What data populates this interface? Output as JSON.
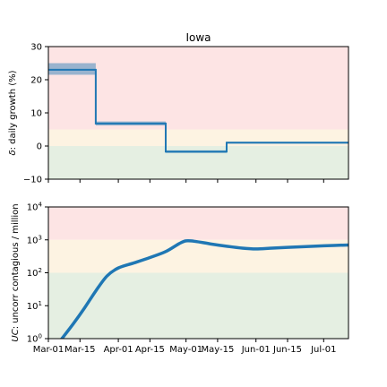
{
  "chart_data": [
    {
      "type": "line",
      "title": "Iowa",
      "ylabel": "δ: daily growth (%)",
      "ylabel_var": "δ",
      "ylabel_rest": ": daily growth (%)",
      "xlim": [
        "2020-03-01",
        "2020-07-12"
      ],
      "ylim": [
        -10,
        30
      ],
      "yticks": [
        -10,
        0,
        10,
        20,
        30
      ],
      "ytick_labels": [
        "−10",
        "0",
        "10",
        "20",
        "30"
      ],
      "bands": [
        {
          "from": 5,
          "to": 30,
          "color": "#fde4e4"
        },
        {
          "from": 0,
          "to": 5,
          "color": "#fdf3e2"
        },
        {
          "from": -10,
          "to": 0,
          "color": "#e5efe2"
        }
      ],
      "series": [
        {
          "values": [
            {
              "x": "2020-03-01",
              "y": 23.0
            },
            {
              "x": "2020-03-22",
              "y": 23.0
            },
            {
              "x": "2020-03-22",
              "y": 6.8
            },
            {
              "x": "2020-04-22",
              "y": 6.8
            },
            {
              "x": "2020-04-22",
              "y": -1.7
            },
            {
              "x": "2020-05-19",
              "y": -1.7
            },
            {
              "x": "2020-05-19",
              "y": 1.0
            },
            {
              "x": "2020-07-12",
              "y": 1.0
            }
          ],
          "band": [
            {
              "x0": "2020-03-01",
              "x1": "2020-03-22",
              "lo": 21.5,
              "hi": 25.0
            },
            {
              "x0": "2020-03-22",
              "x1": "2020-04-22",
              "lo": 6.2,
              "hi": 7.4
            },
            {
              "x0": "2020-04-22",
              "x1": "2020-05-19",
              "lo": -2.1,
              "hi": -1.3
            },
            {
              "x0": "2020-05-19",
              "x1": "2020-07-12",
              "lo": 0.7,
              "hi": 1.3
            }
          ],
          "color": "#1f77b4"
        }
      ]
    },
    {
      "type": "line",
      "ylabel": "UC: uncorr contagious / million",
      "ylabel_var": "UC",
      "ylabel_rest": ": uncorr contagious / million",
      "yscale": "log",
      "xlim": [
        "2020-03-01",
        "2020-07-12"
      ],
      "ylim": [
        1,
        10000
      ],
      "yticks": [
        1,
        10,
        100,
        1000,
        10000
      ],
      "ytick_exponents": [
        "0",
        "1",
        "2",
        "3",
        "4"
      ],
      "ytick_base": "10",
      "xticks": [
        "2020-03-01",
        "2020-03-15",
        "2020-04-01",
        "2020-04-15",
        "2020-05-01",
        "2020-05-15",
        "2020-06-01",
        "2020-06-15",
        "2020-07-01"
      ],
      "xtick_labels": [
        "Mar-01",
        "Mar-15",
        "Apr-01",
        "Apr-15",
        "May-01",
        "May-15",
        "Jun-01",
        "Jun-15",
        "Jul-01"
      ],
      "bands": [
        {
          "from": 1000,
          "to": 10000,
          "color": "#fde4e4"
        },
        {
          "from": 100,
          "to": 1000,
          "color": "#fdf3e2"
        },
        {
          "from": 1,
          "to": 100,
          "color": "#e5efe2"
        }
      ],
      "series": [
        {
          "values": [
            {
              "x": "2020-03-07",
              "y": 1.0
            },
            {
              "x": "2020-03-12",
              "y": 2.8
            },
            {
              "x": "2020-03-17",
              "y": 8.5
            },
            {
              "x": "2020-03-22",
              "y": 28
            },
            {
              "x": "2020-03-27",
              "y": 80
            },
            {
              "x": "2020-04-01",
              "y": 140
            },
            {
              "x": "2020-04-08",
              "y": 200
            },
            {
              "x": "2020-04-15",
              "y": 290
            },
            {
              "x": "2020-04-22",
              "y": 440
            },
            {
              "x": "2020-04-28",
              "y": 770
            },
            {
              "x": "2020-05-01",
              "y": 930
            },
            {
              "x": "2020-05-05",
              "y": 900
            },
            {
              "x": "2020-05-12",
              "y": 750
            },
            {
              "x": "2020-05-19",
              "y": 640
            },
            {
              "x": "2020-05-26",
              "y": 560
            },
            {
              "x": "2020-06-01",
              "y": 530
            },
            {
              "x": "2020-06-08",
              "y": 560
            },
            {
              "x": "2020-06-15",
              "y": 590
            },
            {
              "x": "2020-06-22",
              "y": 620
            },
            {
              "x": "2020-07-01",
              "y": 660
            },
            {
              "x": "2020-07-12",
              "y": 700
            }
          ],
          "color": "#1f77b4"
        }
      ]
    }
  ]
}
